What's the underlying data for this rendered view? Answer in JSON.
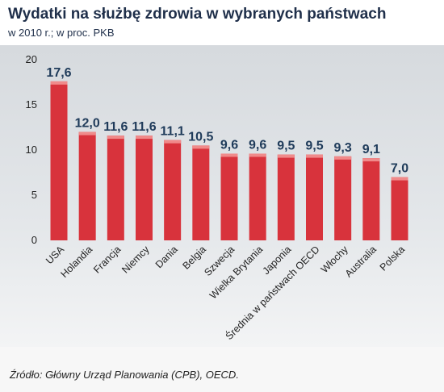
{
  "header": {
    "title": "Wydatki na służbę zdrowia w wybranych państwach",
    "subtitle": "w 2010 r.; w proc. PKB"
  },
  "footer": {
    "source": "Źródło: Główny Urząd Planowania (CPB), OECD."
  },
  "colors": {
    "bar": "#d8333c",
    "bar_top": "#f08a8a",
    "label": "#1f3b5a",
    "background": "#e9ebed"
  },
  "chart_data": {
    "type": "bar",
    "categories": [
      "USA",
      "Holandia",
      "Francja",
      "Niemcy",
      "Dania",
      "Belgia",
      "Szwecja",
      "Wielka Brytania",
      "Japonia",
      "Średnia w państwach OECD",
      "Włochy",
      "Australia",
      "Polska"
    ],
    "values": [
      17.6,
      12.0,
      11.6,
      11.6,
      11.1,
      10.5,
      9.6,
      9.6,
      9.5,
      9.5,
      9.3,
      9.1,
      7.0
    ],
    "value_labels": [
      "17,6",
      "12,0",
      "11,6",
      "11,6",
      "11,1",
      "10,5",
      "9,6",
      "9,6",
      "9,5",
      "9,5",
      "9,3",
      "9,1",
      "7,0"
    ],
    "yticks": [
      "0",
      "5",
      "10",
      "15",
      "20"
    ],
    "title": "Wydatki na służbę zdrowia w wybranych państwach",
    "xlabel": "",
    "ylabel": "",
    "ylim": [
      0,
      20
    ],
    "grid": false,
    "legend": "none"
  }
}
